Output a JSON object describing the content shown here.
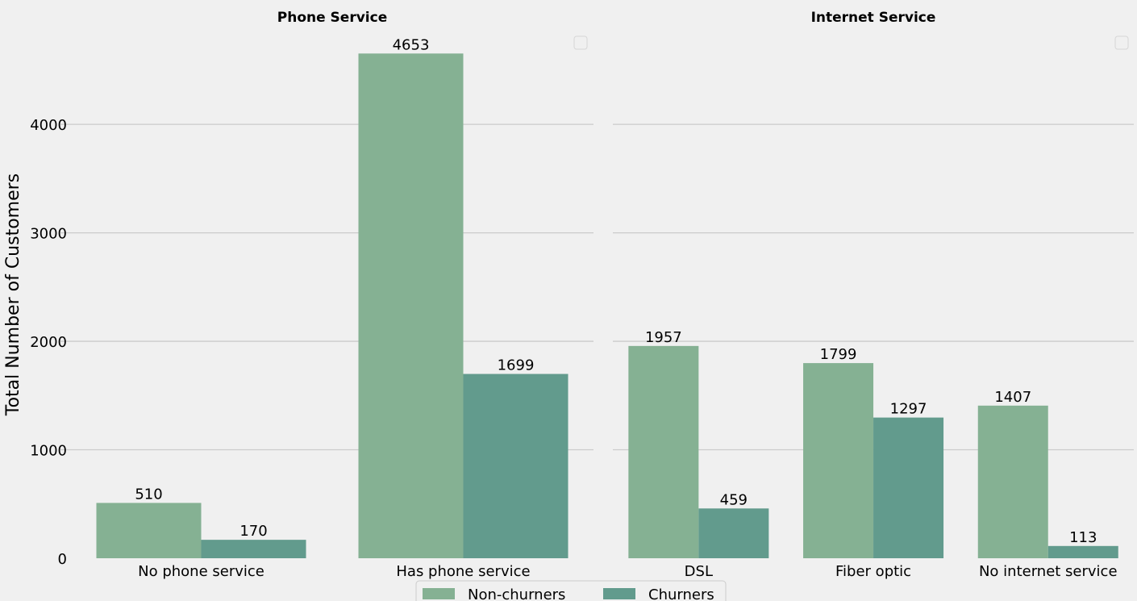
{
  "colors": {
    "non_churners": "#85b193",
    "churners": "#629b8d",
    "background": "#f0f0f0",
    "grid": "#cbcbcb"
  },
  "ylabel": "Total Number of Customers",
  "legend": {
    "placement": "bottom-center",
    "items": [
      "Non-churners",
      "Churners"
    ]
  },
  "chart_data": [
    {
      "type": "bar",
      "title": "Phone Service",
      "categories": [
        "No phone service",
        "Has phone service"
      ],
      "series": [
        {
          "name": "Non-churners",
          "values": [
            510,
            4653
          ]
        },
        {
          "name": "Churners",
          "values": [
            170,
            1699
          ]
        }
      ],
      "ylabel": "Total Number of Customers",
      "yticks": [
        0,
        1000,
        2000,
        3000,
        4000
      ],
      "ylim": [
        0,
        4886
      ],
      "grid": true,
      "legend": "bottom-center"
    },
    {
      "type": "bar",
      "title": "Internet Service",
      "categories": [
        "DSL",
        "Fiber optic",
        "No internet service"
      ],
      "series": [
        {
          "name": "Non-churners",
          "values": [
            1957,
            1799,
            1407
          ]
        },
        {
          "name": "Churners",
          "values": [
            459,
            1297,
            113
          ]
        }
      ],
      "ylabel": "",
      "yticks": [
        0,
        1000,
        2000,
        3000,
        4000
      ],
      "ylim": [
        0,
        4886
      ],
      "grid": true,
      "legend": "bottom-center"
    }
  ]
}
